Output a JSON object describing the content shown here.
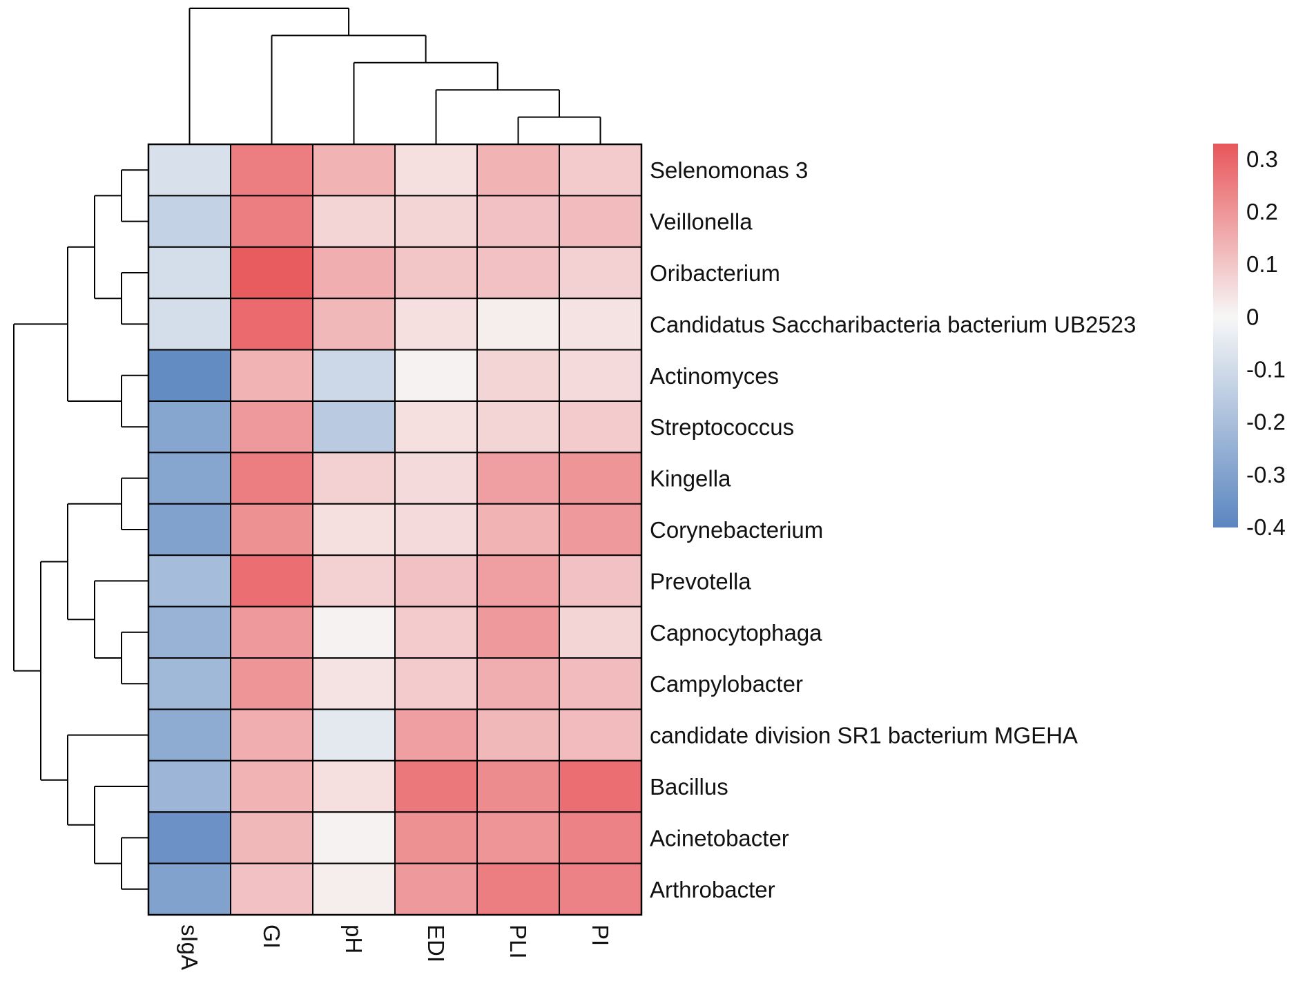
{
  "chart_data": {
    "type": "heatmap",
    "columns": [
      "sIgA",
      "GI",
      "pH",
      "EDI",
      "PLI",
      "PI"
    ],
    "rows": [
      "Selenomonas 3",
      "Veillonella",
      "Oribacterium",
      "Candidatus Saccharibacteria bacterium UB2523",
      "Actinomyces",
      "Streptococcus",
      "Kingella",
      "Corynebacterium",
      "Prevotella",
      "Capnocytophaga",
      "Campylobacter",
      "candidate division SR1 bacterium MGEHA",
      "Bacillus",
      "Acinetobacter",
      "Arthrobacter"
    ],
    "values": [
      [
        -0.08,
        0.25,
        0.14,
        0.05,
        0.14,
        0.09
      ],
      [
        -0.13,
        0.25,
        0.07,
        0.07,
        0.11,
        0.12
      ],
      [
        -0.09,
        0.32,
        0.15,
        0.1,
        0.11,
        0.08
      ],
      [
        -0.09,
        0.29,
        0.13,
        0.05,
        0.02,
        0.04
      ],
      [
        -0.38,
        0.14,
        -0.11,
        0.01,
        0.07,
        0.06
      ],
      [
        -0.29,
        0.19,
        -0.16,
        0.05,
        0.07,
        0.09
      ],
      [
        -0.29,
        0.25,
        0.08,
        0.06,
        0.18,
        0.2
      ],
      [
        -0.3,
        0.21,
        0.05,
        0.06,
        0.14,
        0.19
      ],
      [
        -0.21,
        0.28,
        0.08,
        0.11,
        0.18,
        0.11
      ],
      [
        -0.24,
        0.19,
        0.01,
        0.09,
        0.19,
        0.07
      ],
      [
        -0.22,
        0.2,
        0.04,
        0.09,
        0.15,
        0.12
      ],
      [
        -0.27,
        0.15,
        -0.05,
        0.18,
        0.13,
        0.12
      ],
      [
        -0.23,
        0.14,
        0.05,
        0.26,
        0.22,
        0.28
      ],
      [
        -0.36,
        0.13,
        0.01,
        0.21,
        0.2,
        0.24
      ],
      [
        -0.3,
        0.11,
        0.02,
        0.19,
        0.25,
        0.24
      ]
    ],
    "colorbar": {
      "min": -0.4,
      "max": 0.33,
      "ticks": [
        "0.3",
        "0.2",
        "0.1",
        "0",
        "-0.1",
        "-0.2",
        "-0.3",
        "-0.4"
      ],
      "tick_values": [
        0.3,
        0.2,
        0.1,
        0,
        -0.1,
        -0.2,
        -0.3,
        -0.4
      ],
      "color_low": "#5b86c0",
      "color_mid": "#f7f7f7",
      "color_high": "#e8565a"
    },
    "column_dendrogram": "(sIgA,(GI,(pH,(EDI,(PLI,PI)))))",
    "row_dendrogram": "((((Selenomonas 3,Veillonella),(Oribacterium,Candidatus Saccharibacteria bacterium UB2523)),(Actinomyces,Streptococcus)),(((Kingella,Corynebacterium),(Prevotella,(Capnocytophaga,Campylobacter))),(candidate division SR1 bacterium MGEHA,(Bacillus,(Acinetobacter,Arthrobacter)))))"
  }
}
